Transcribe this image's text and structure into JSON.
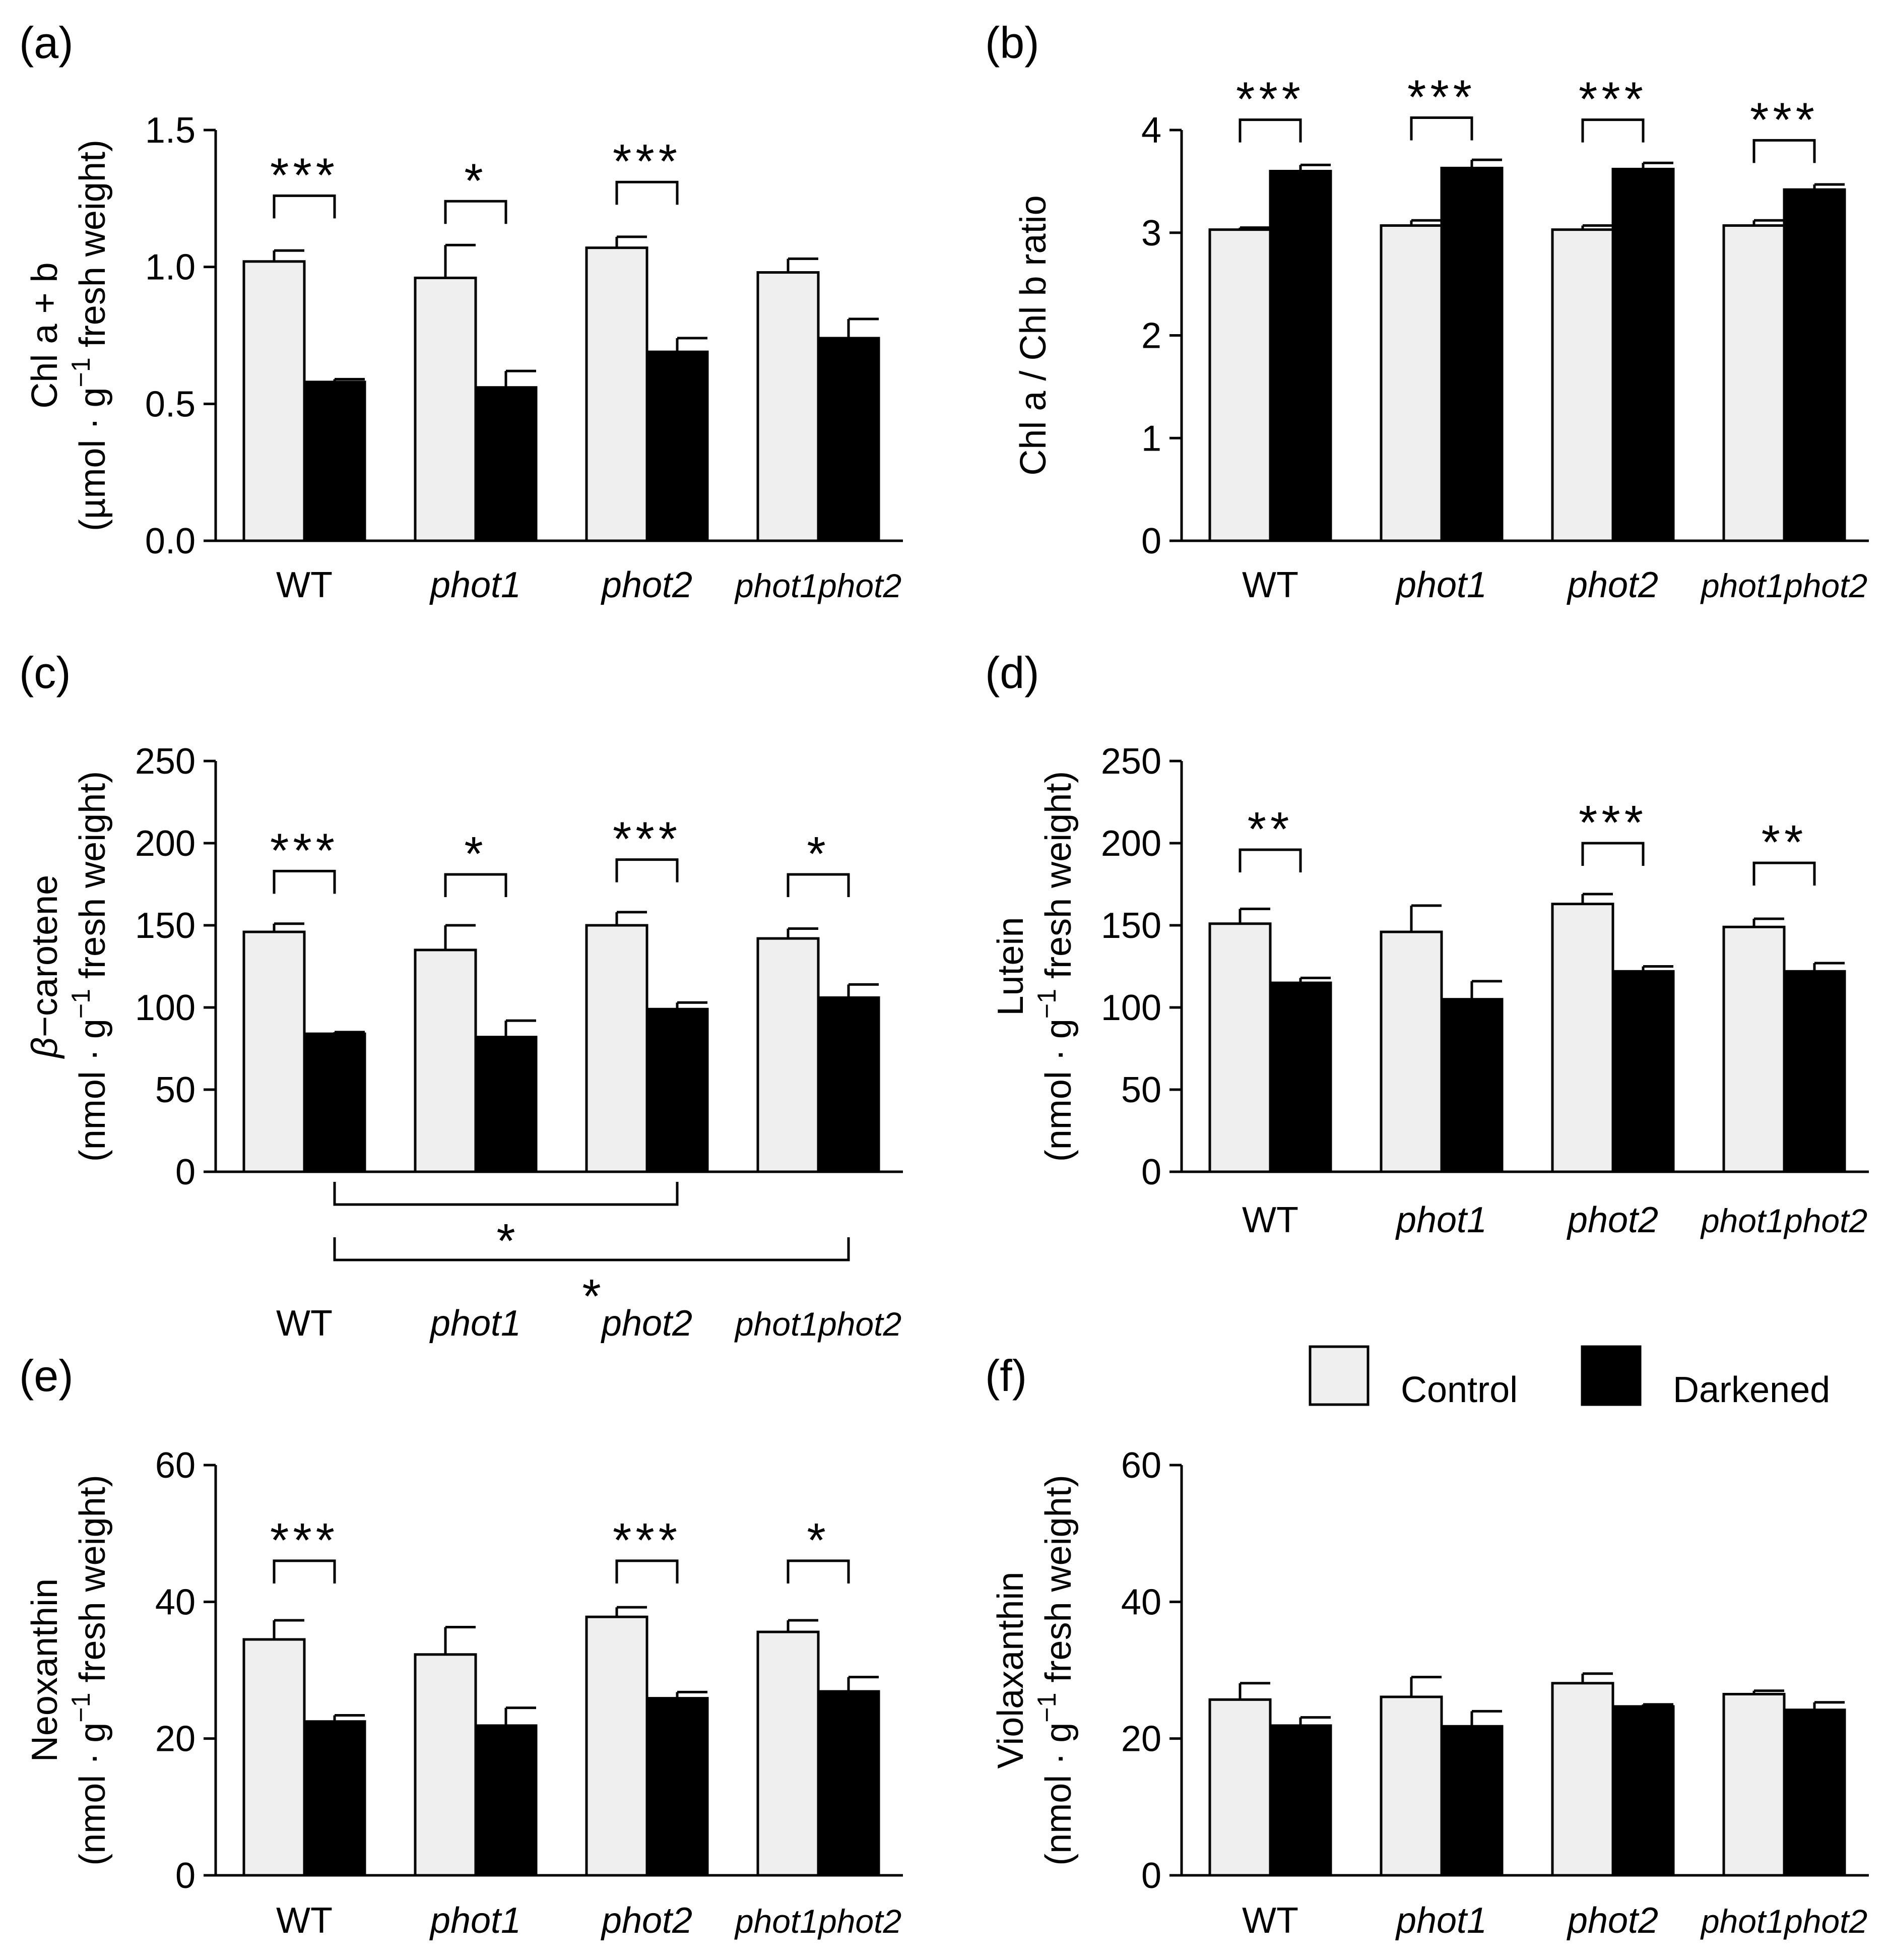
{
  "legend": {
    "control_label": "Control",
    "darkened_label": "Darkened"
  },
  "colors": {
    "control": "#efefef",
    "darkened": "#000000",
    "stroke": "#000000"
  },
  "chart_data": [
    {
      "id": "a",
      "panel_label": "(a)",
      "type": "bar",
      "categories": [
        "WT",
        "phot1",
        "phot2",
        "phot1phot2"
      ],
      "ylim": [
        0,
        1.5
      ],
      "yticks": [
        "0.0",
        "0.5",
        "1.0",
        "1.5"
      ],
      "ylabel": {
        "line1": "Chl a + b",
        "line2_pre": "(µmol · g",
        "line2_sup": "−1",
        "line2_post": " fresh weight)"
      },
      "series": [
        {
          "name": "Control",
          "values": [
            1.02,
            0.96,
            1.07,
            0.98
          ],
          "errors": [
            0.04,
            0.12,
            0.04,
            0.05
          ]
        },
        {
          "name": "Darkened",
          "values": [
            0.58,
            0.56,
            0.69,
            0.74
          ],
          "errors": [
            0.01,
            0.06,
            0.05,
            0.07
          ]
        }
      ],
      "significance": [
        {
          "group": 0,
          "stars": "***",
          "y": 1.26
        },
        {
          "group": 1,
          "stars": "*",
          "y": 1.24
        },
        {
          "group": 2,
          "stars": "***",
          "y": 1.31
        }
      ]
    },
    {
      "id": "b",
      "panel_label": "(b)",
      "type": "bar",
      "categories": [
        "WT",
        "phot1",
        "phot2",
        "phot1phot2"
      ],
      "ylim": [
        0,
        4
      ],
      "yticks": [
        "0",
        "1",
        "2",
        "3",
        "4"
      ],
      "ylabel": {
        "line1": "Chl a / Chl b ratio"
      },
      "series": [
        {
          "name": "Control",
          "values": [
            3.03,
            3.07,
            3.03,
            3.07
          ],
          "errors": [
            0.02,
            0.05,
            0.04,
            0.05
          ]
        },
        {
          "name": "Darkened",
          "values": [
            3.6,
            3.63,
            3.62,
            3.42
          ],
          "errors": [
            0.06,
            0.08,
            0.06,
            0.05
          ]
        }
      ],
      "significance": [
        {
          "group": 0,
          "stars": "***",
          "y": 4.1
        },
        {
          "group": 1,
          "stars": "***",
          "y": 4.12
        },
        {
          "group": 2,
          "stars": "***",
          "y": 4.1
        },
        {
          "group": 3,
          "stars": "***",
          "y": 3.9
        }
      ]
    },
    {
      "id": "c",
      "panel_label": "(c)",
      "type": "bar",
      "categories": [
        "WT",
        "phot1",
        "phot2",
        "phot1phot2"
      ],
      "ylim": [
        0,
        250
      ],
      "yticks": [
        "0",
        "50",
        "100",
        "150",
        "200",
        "250"
      ],
      "ylabel": {
        "italic_prefix": "β",
        "line1": "−carotene",
        "line2_pre": "(nmol · g",
        "line2_sup": "−1",
        "line2_post": " fresh weight)"
      },
      "series": [
        {
          "name": "Control",
          "values": [
            146,
            135,
            150,
            142
          ],
          "errors": [
            5,
            15,
            8,
            6
          ]
        },
        {
          "name": "Darkened",
          "values": [
            84,
            82,
            99,
            106
          ],
          "errors": [
            1,
            10,
            4,
            8
          ]
        }
      ],
      "significance": [
        {
          "group": 0,
          "stars": "***",
          "y": 183
        },
        {
          "group": 1,
          "stars": "*",
          "y": 181
        },
        {
          "group": 2,
          "stars": "***",
          "y": 190
        },
        {
          "group": 3,
          "stars": "*",
          "y": 181
        }
      ],
      "cross_significance": [
        {
          "from": 0,
          "to": 2,
          "stars": "*",
          "level": 1
        },
        {
          "from": 0,
          "to": 3,
          "stars": "*",
          "level": 2
        }
      ]
    },
    {
      "id": "d",
      "panel_label": "(d)",
      "type": "bar",
      "categories": [
        "WT",
        "phot1",
        "phot2",
        "phot1phot2"
      ],
      "ylim": [
        0,
        250
      ],
      "yticks": [
        "0",
        "50",
        "100",
        "150",
        "200",
        "250"
      ],
      "ylabel": {
        "line1": "Lutein",
        "line2_pre": "(nmol · g",
        "line2_sup": "−1",
        "line2_post": " fresh weight)"
      },
      "series": [
        {
          "name": "Control",
          "values": [
            151,
            146,
            163,
            149
          ],
          "errors": [
            9,
            16,
            6,
            5
          ]
        },
        {
          "name": "Darkened",
          "values": [
            115,
            105,
            122,
            122
          ],
          "errors": [
            3,
            11,
            3,
            5
          ]
        }
      ],
      "significance": [
        {
          "group": 0,
          "stars": "**",
          "y": 196
        },
        {
          "group": 2,
          "stars": "***",
          "y": 200
        },
        {
          "group": 3,
          "stars": "**",
          "y": 188
        }
      ]
    },
    {
      "id": "e",
      "panel_label": "(e)",
      "type": "bar",
      "categories": [
        "WT",
        "phot1",
        "phot2",
        "phot1phot2"
      ],
      "ylim": [
        0,
        60
      ],
      "yticks": [
        "0",
        "20",
        "40",
        "60"
      ],
      "ylabel": {
        "line1": "Neoxanthin",
        "line2_pre": "(nmol · g",
        "line2_sup": "−1",
        "line2_post": " fresh weight)"
      },
      "series": [
        {
          "name": "Control",
          "values": [
            34.5,
            32.3,
            37.8,
            35.6
          ],
          "errors": [
            2.8,
            4,
            1.4,
            1.7
          ]
        },
        {
          "name": "Darkened",
          "values": [
            22.5,
            21.9,
            25.9,
            26.9
          ],
          "errors": [
            0.9,
            2.6,
            0.9,
            2.1
          ]
        }
      ],
      "significance": [
        {
          "group": 0,
          "stars": "***",
          "y": 46
        },
        {
          "group": 2,
          "stars": "***",
          "y": 46
        },
        {
          "group": 3,
          "stars": "*",
          "y": 46
        }
      ]
    },
    {
      "id": "f",
      "panel_label": "(f)",
      "type": "bar",
      "categories": [
        "WT",
        "phot1",
        "phot2",
        "phot1phot2"
      ],
      "ylim": [
        0,
        60
      ],
      "yticks": [
        "0",
        "20",
        "40",
        "60"
      ],
      "ylabel": {
        "line1": "Violaxanthin",
        "line2_pre": "(nmol · g",
        "line2_sup": "−1",
        "line2_post": " fresh weight)"
      },
      "series": [
        {
          "name": "Control",
          "values": [
            25.7,
            26.1,
            28.1,
            26.5
          ],
          "errors": [
            2.4,
            2.9,
            1.4,
            0.5
          ]
        },
        {
          "name": "Darkened",
          "values": [
            21.9,
            21.8,
            24.7,
            24.2
          ],
          "errors": [
            1.2,
            2.2,
            0.3,
            1.1
          ]
        }
      ],
      "significance": []
    }
  ]
}
